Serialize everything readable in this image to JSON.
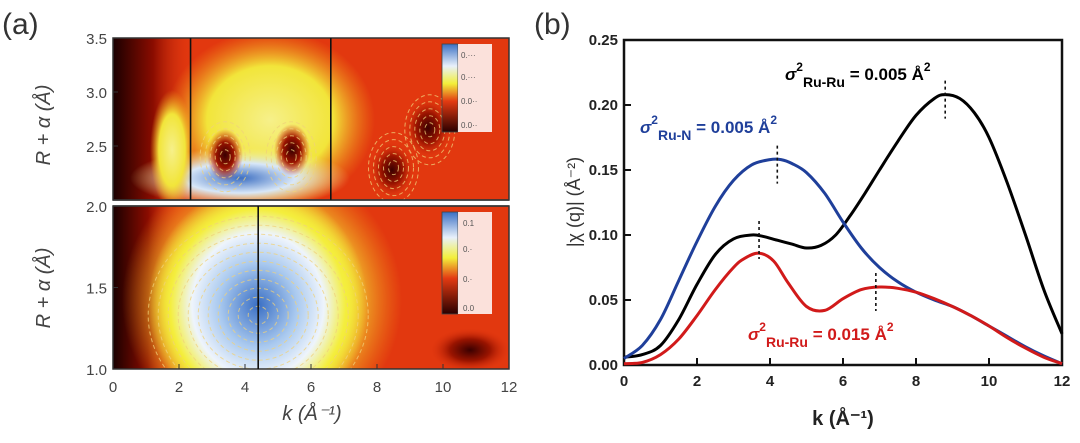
{
  "chart_data": [
    {
      "type": "heatmap",
      "panel_label": "(a)",
      "xlabel": "k (Å⁻¹)",
      "x_range": [
        0,
        12
      ],
      "x_ticks": [
        "0",
        "2",
        "4",
        "6",
        "8",
        "10",
        "12"
      ],
      "subplots": [
        {
          "ylabel": "R + α (Å)",
          "y_range": [
            2.0,
            3.5
          ],
          "y_ticks": [
            "2.5",
            "3.0",
            "3.5"
          ],
          "marker_lines_k": [
            2.35,
            6.6
          ],
          "colorbar_ticks": [
            "0.···",
            "0.···",
            "0.0··",
            "0.0··"
          ],
          "maxima": [
            {
              "k": 3.4,
              "r": 2.4
            },
            {
              "k": 5.4,
              "r": 2.4
            },
            {
              "k": 8.5,
              "r": 2.3
            },
            {
              "k": 9.6,
              "r": 2.65
            }
          ]
        },
        {
          "ylabel": "R + α (Å)",
          "y_range": [
            1.0,
            2.0
          ],
          "y_ticks": [
            "1.0",
            "1.5",
            "2.0"
          ],
          "marker_lines_k": [
            4.4
          ],
          "colorbar_ticks": [
            "0.1",
            "0.·",
            "0.·",
            "0.0"
          ],
          "maxima": [
            {
              "k": 4.4,
              "r": 1.33
            }
          ]
        }
      ]
    },
    {
      "type": "line",
      "panel_label": "(b)",
      "xlabel": "k (Å⁻¹)",
      "ylabel": "|χ (q)| (Å⁻²)",
      "xlim": [
        0,
        12
      ],
      "ylim": [
        0,
        0.25
      ],
      "x_ticks": [
        0,
        2,
        4,
        6,
        8,
        10,
        12
      ],
      "y_ticks": [
        "0.00",
        "0.05",
        "0.10",
        "0.15",
        "0.20",
        "0.25"
      ],
      "series": [
        {
          "color": "#000000",
          "x": [
            0,
            0.5,
            1,
            1.5,
            2,
            2.5,
            3,
            3.5,
            3.8,
            4.2,
            4.6,
            5,
            5.4,
            5.8,
            6.2,
            6.6,
            7,
            7.5,
            8,
            8.5,
            8.8,
            9.2,
            9.6,
            10,
            10.5,
            11,
            11.5,
            12
          ],
          "y": [
            0.006,
            0.008,
            0.015,
            0.035,
            0.062,
            0.085,
            0.097,
            0.1,
            0.099,
            0.096,
            0.093,
            0.09,
            0.092,
            0.1,
            0.115,
            0.132,
            0.15,
            0.172,
            0.192,
            0.205,
            0.208,
            0.205,
            0.194,
            0.175,
            0.14,
            0.1,
            0.058,
            0.024
          ]
        },
        {
          "color": "#1f3f9a",
          "x": [
            0,
            0.5,
            1,
            1.5,
            2,
            2.5,
            3,
            3.5,
            4,
            4.3,
            4.6,
            5,
            5.5,
            6,
            6.5,
            7,
            7.5,
            8,
            8.5,
            9,
            9.5,
            10,
            10.5,
            11,
            11.5,
            12
          ],
          "y": [
            0.005,
            0.015,
            0.035,
            0.065,
            0.095,
            0.122,
            0.142,
            0.154,
            0.158,
            0.158,
            0.155,
            0.148,
            0.132,
            0.11,
            0.09,
            0.075,
            0.064,
            0.056,
            0.05,
            0.045,
            0.038,
            0.03,
            0.022,
            0.014,
            0.007,
            0.001
          ]
        },
        {
          "color": "#d11a1a",
          "x": [
            0,
            0.5,
            1,
            1.5,
            2,
            2.5,
            3,
            3.3,
            3.7,
            4.1,
            4.5,
            5,
            5.5,
            6,
            6.5,
            7,
            7.5,
            8,
            8.5,
            9,
            9.5,
            10,
            10.5,
            11,
            11.5,
            12
          ],
          "y": [
            0.001,
            0.002,
            0.008,
            0.02,
            0.038,
            0.058,
            0.075,
            0.082,
            0.086,
            0.08,
            0.063,
            0.045,
            0.042,
            0.051,
            0.058,
            0.06,
            0.059,
            0.056,
            0.051,
            0.045,
            0.038,
            0.03,
            0.021,
            0.013,
            0.006,
            0.001
          ]
        }
      ],
      "peak_markers": [
        {
          "k": 8.8,
          "y": 0.208
        },
        {
          "k": 4.2,
          "y": 0.158
        },
        {
          "k": 3.7,
          "y": 0.1
        },
        {
          "k": 6.9,
          "y": 0.06
        }
      ],
      "annotations": [
        {
          "sigma": "σ",
          "sup": "2",
          "sub": "Ru-Ru",
          "value": " = 0.005 Å",
          "vsup": "2",
          "color": "#000000"
        },
        {
          "sigma": "σ",
          "sup": "2",
          "sub": "Ru-N",
          "value": " = 0.005 Å",
          "vsup": "2",
          "color": "#1f3f9a"
        },
        {
          "sigma": "σ",
          "sup": "2",
          "sub": "Ru-Ru",
          "value": " = 0.015 Å",
          "vsup": "2",
          "color": "#d11a1a"
        }
      ]
    }
  ]
}
